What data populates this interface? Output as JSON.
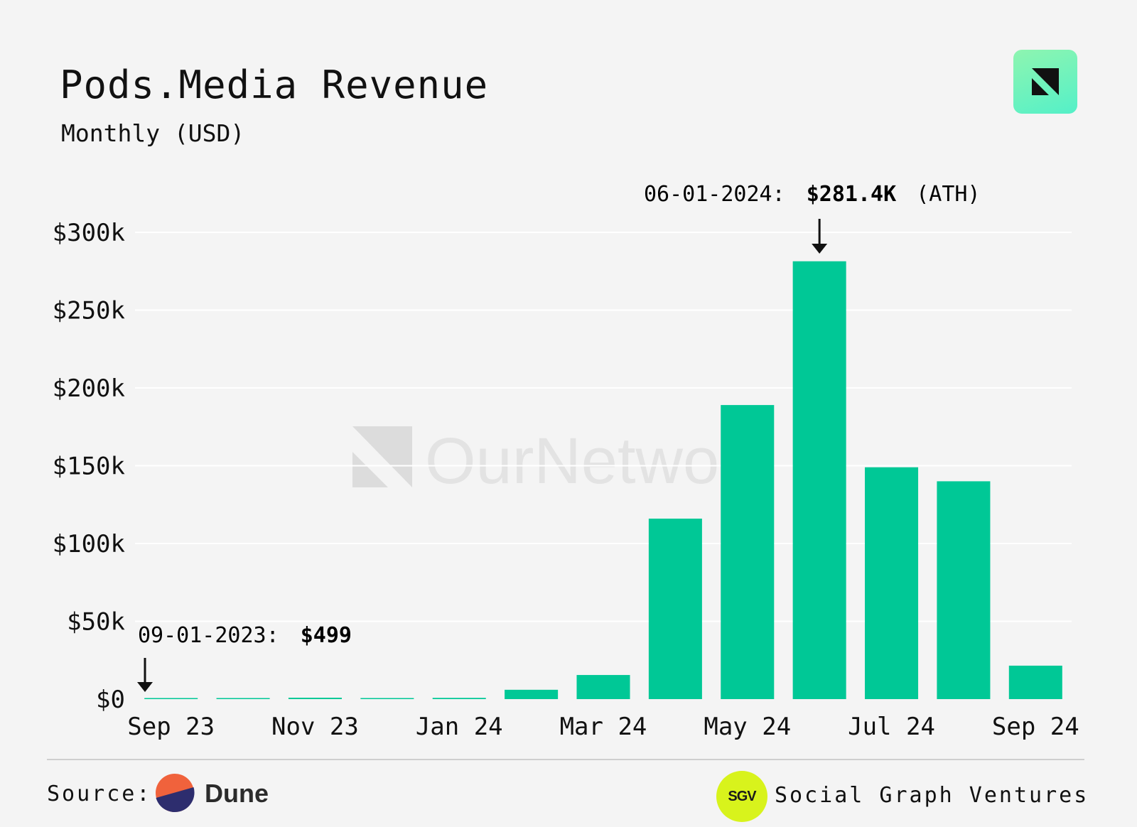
{
  "header": {
    "title": "Pods.Media Revenue",
    "subtitle": "Monthly (USD)"
  },
  "watermark": {
    "text": "OurNetwork"
  },
  "logo": {
    "icon": "ournetwork-logo-icon",
    "color": "#5ef2c0"
  },
  "colors": {
    "bar": "#00c896",
    "gridline": "#ffffff",
    "background": "#f4f4f4"
  },
  "annotations": {
    "ath": {
      "date_label": "06-01-2024:",
      "value_label": "$281.4K",
      "suffix_label": "(ATH)",
      "month": "Jun 24"
    },
    "first": {
      "date_label": "09-01-2023:",
      "value_label": "$499",
      "month": "Sep 23"
    }
  },
  "chart_data": {
    "type": "bar",
    "title": "Pods.Media Revenue",
    "subtitle": "Monthly (USD)",
    "xlabel": "",
    "ylabel": "",
    "categories": [
      "Sep 23",
      "Oct 23",
      "Nov 23",
      "Dec 23",
      "Jan 24",
      "Feb 24",
      "Mar 24",
      "Apr 24",
      "May 24",
      "Jun 24",
      "Jul 24",
      "Aug 24",
      "Sep 24"
    ],
    "values": [
      499,
      400,
      900,
      600,
      800,
      6000,
      15500,
      116000,
      189000,
      281400,
      149000,
      140000,
      21500
    ],
    "x_tick_labels": [
      "Sep 23",
      "Nov 23",
      "Jan 24",
      "Mar 24",
      "May 24",
      "Jul 24",
      "Sep 24"
    ],
    "y_ticks": [
      0,
      50000,
      100000,
      150000,
      200000,
      250000,
      300000
    ],
    "y_tick_labels": [
      "$0",
      "$50k",
      "$100k",
      "$150k",
      "$200k",
      "$250k",
      "$300k"
    ],
    "ylim": [
      0,
      300000
    ],
    "grid": true,
    "legend": "none"
  },
  "footer": {
    "source_label": "Source:",
    "source_name": "Dune",
    "source_icon": "dune-logo-icon",
    "partner_badge": "SGV",
    "partner_name": "Social Graph Ventures"
  }
}
